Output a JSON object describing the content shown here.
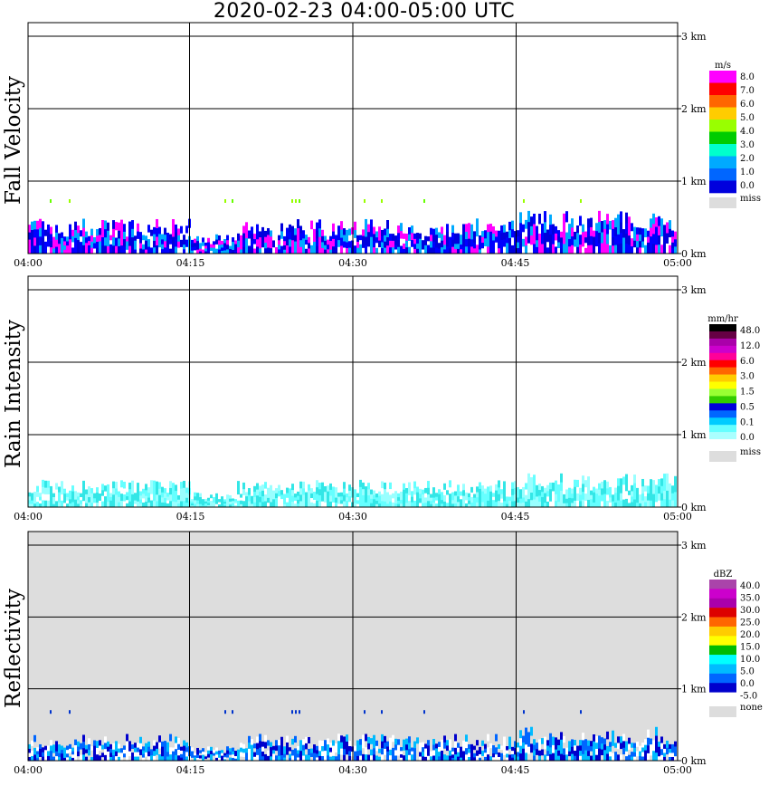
{
  "title": "2020-02-23   04:00-05:00 UTC",
  "time_ticks": [
    "04:00",
    "04:15",
    "04:30",
    "04:45",
    "05:00"
  ],
  "height_ticks": [
    "0 km",
    "1 km",
    "2 km",
    "3 km"
  ],
  "chart_data": [
    {
      "type": "heatmap",
      "ylabel": "Fall Velocity",
      "xlabel": "",
      "xlim": [
        "04:00",
        "05:00"
      ],
      "ylim_km": [
        0,
        3.2
      ],
      "legend_unit": "m/s",
      "legend_labels": [
        "8.0",
        "7.0",
        "6.0",
        "5.0",
        "4.0",
        "3.0",
        "2.0",
        "1.0",
        "0.0"
      ],
      "legend_colors": [
        "#ff00ff",
        "#ff0000",
        "#ff6600",
        "#ffcc00",
        "#99ff00",
        "#00cc00",
        "#00ffcc",
        "#00aaff",
        "#0066ff",
        "#0000dd"
      ],
      "missing_label": "miss",
      "missing_color": "#dddddd",
      "background": "#ffffff",
      "echo_top_km": 0.45,
      "echo_max_km": 0.85,
      "sparse_specks_km": 0.8,
      "dominant_colors": [
        "#0000dd",
        "#0000ff",
        "#ff00ff",
        "#00aaff"
      ]
    },
    {
      "type": "heatmap",
      "ylabel": "Rain Intensity",
      "xlabel": "",
      "xlim": [
        "04:00",
        "05:00"
      ],
      "ylim_km": [
        0,
        3.2
      ],
      "legend_unit": "mm/hr",
      "legend_labels": [
        "48.0",
        "12.0",
        "6.0",
        "3.0",
        "1.5",
        "0.5",
        "0.1",
        "0.0"
      ],
      "legend_colors": [
        "#000000",
        "#660044",
        "#aa00aa",
        "#cc00cc",
        "#ff0099",
        "#ff0000",
        "#ff6600",
        "#ffcc00",
        "#ffff00",
        "#99ff33",
        "#33cc00",
        "#0000dd",
        "#0066ff",
        "#00ccff",
        "#66ffff",
        "#aaffff",
        "#ffffff"
      ],
      "missing_label": "miss",
      "missing_color": "#dddddd",
      "background": "#ffffff",
      "echo_top_km": 0.35,
      "echo_max_km": 0.65,
      "dominant_colors": [
        "#66ffff",
        "#99ffff",
        "#33e6e6"
      ]
    },
    {
      "type": "heatmap",
      "ylabel": "Reflectivity",
      "xlabel": "",
      "xlim": [
        "04:00",
        "05:00"
      ],
      "ylim_km": [
        0,
        3.2
      ],
      "legend_unit": "dBZ",
      "legend_labels": [
        "40.0",
        "35.0",
        "30.0",
        "25.0",
        "20.0",
        "15.0",
        "10.0",
        "5.0",
        "0.0",
        "-5.0"
      ],
      "legend_colors": [
        "#aa44aa",
        "#cc00cc",
        "#aa00aa",
        "#dd0000",
        "#ff6600",
        "#ffcc00",
        "#ffff00",
        "#00bb00",
        "#00ffff",
        "#00bbff",
        "#0066ff",
        "#0000cc",
        "#ffffff"
      ],
      "missing_label": "none",
      "missing_color": "#dddddd",
      "background": "#dddddd",
      "echo_top_km": 0.35,
      "echo_max_km": 0.75,
      "dominant_colors": [
        "#ffffff",
        "#0000cc",
        "#0066ff",
        "#00bbff"
      ]
    }
  ]
}
